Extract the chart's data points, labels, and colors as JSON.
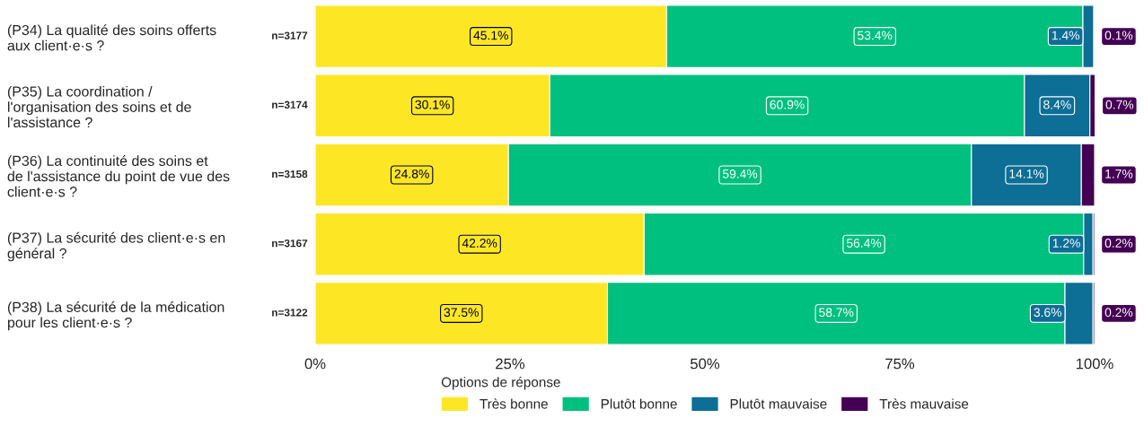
{
  "chart_data": {
    "type": "bar",
    "orientation": "horizontal",
    "stacked": true,
    "categories": [
      "(P34) La qualité des soins offerts\naux client·e·s ?",
      "(P35) La coordination /\nl'organisation des soins et de\nl'assistance ?",
      "(P36) La continuité des soins et\nde l'assistance du point de vue des\nclient·e·s ?",
      "(P37) La sécurité des client·e·s en\ngénéral ?",
      "(P38) La sécurité de la médication\npour les client·e·s ?"
    ],
    "series": [
      {
        "name": "Très bonne",
        "color": "#fde725",
        "values": [
          45.1,
          30.1,
          24.8,
          42.2,
          37.5
        ],
        "value_labels": [
          "45.1%",
          "30.1%",
          "24.8%",
          "42.2%",
          "37.5%"
        ]
      },
      {
        "name": "Plutôt bonne",
        "color": "#00c07f",
        "values": [
          53.4,
          60.9,
          59.4,
          56.4,
          58.7
        ],
        "value_labels": [
          "53.4%",
          "60.9%",
          "59.4%",
          "56.4%",
          "58.7%"
        ]
      },
      {
        "name": "Plutôt mauvaise",
        "color": "#0d6e96",
        "values": [
          1.4,
          8.4,
          14.1,
          1.2,
          3.6
        ],
        "value_labels": [
          "1.4%",
          "8.4%",
          "14.1%",
          "1.2%",
          "3.6%"
        ]
      },
      {
        "name": "Très mauvaise",
        "color": "#440154",
        "values": [
          0.1,
          0.7,
          1.7,
          0.2,
          0.2
        ],
        "value_labels": [
          "0.1%",
          "0.7%",
          "1.7%",
          "0.2%",
          "0.2%"
        ]
      }
    ],
    "xlim": [
      0,
      100
    ],
    "xticks": [
      {
        "value": 0,
        "label": "0%"
      },
      {
        "value": 25,
        "label": "25%"
      },
      {
        "value": 50,
        "label": "50%"
      },
      {
        "value": 75,
        "label": "75%"
      },
      {
        "value": 100,
        "label": "100%"
      }
    ],
    "legend": "bottom",
    "legend_title": "Options de réponse",
    "grid": false,
    "annotations": [
      "n=3177",
      "n=3174",
      "n=3158",
      "n=3167",
      "n=3122"
    ]
  }
}
